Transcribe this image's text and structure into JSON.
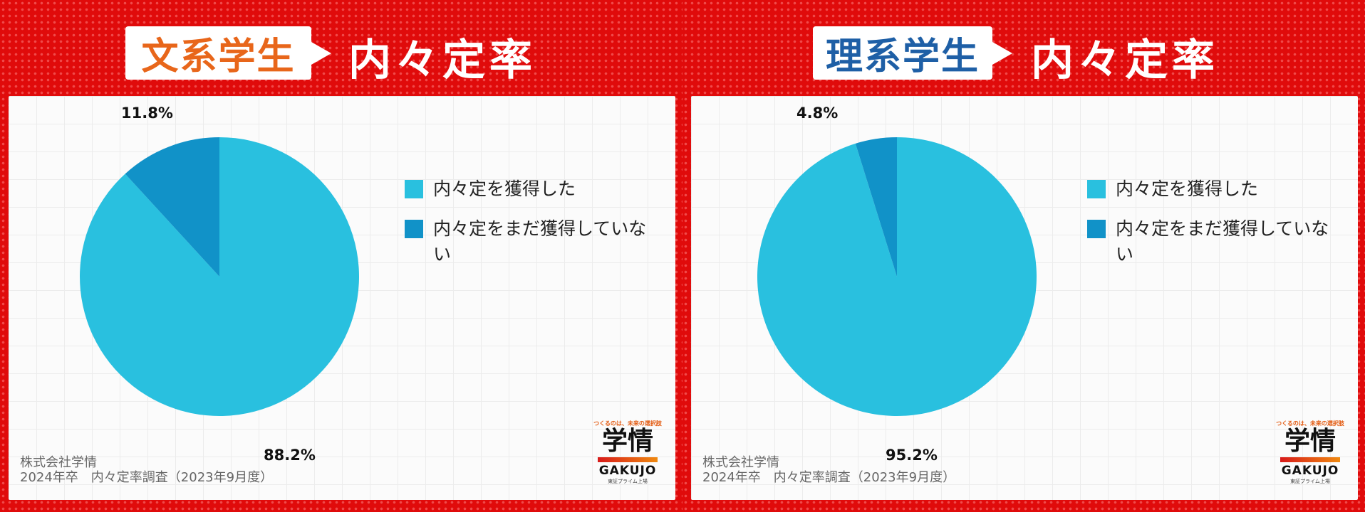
{
  "panels": [
    {
      "tag": "文系学生",
      "tag_color": "#e8661a",
      "heading": "内々定率",
      "chart_data": {
        "type": "pie",
        "categories": [
          "内々定を獲得した",
          "内々定をまだ獲得していない"
        ],
        "values": [
          88.2,
          11.8
        ],
        "labels": [
          "88.2%",
          "11.8%"
        ],
        "colors": [
          "#29c0df",
          "#1192c8"
        ],
        "legend_placement": "right"
      },
      "footer": [
        "株式会社学情",
        "2024年卒　内々定率調査（2023年9月度）"
      ]
    },
    {
      "tag": "理系学生",
      "tag_color": "#1e5fa6",
      "heading": "内々定率",
      "chart_data": {
        "type": "pie",
        "categories": [
          "内々定を獲得した",
          "内々定をまだ獲得していない"
        ],
        "values": [
          95.2,
          4.8
        ],
        "labels": [
          "95.2%",
          "4.8%"
        ],
        "colors": [
          "#29c0df",
          "#1192c8"
        ],
        "legend_placement": "right"
      },
      "footer": [
        "株式会社学情",
        "2024年卒　内々定率調査（2023年9月度）"
      ]
    }
  ],
  "logo": {
    "tagline": "つくるのは、未来の選択肢",
    "name": "学情",
    "name_en": "GAKUJO",
    "sub": "東証プライム上場"
  }
}
